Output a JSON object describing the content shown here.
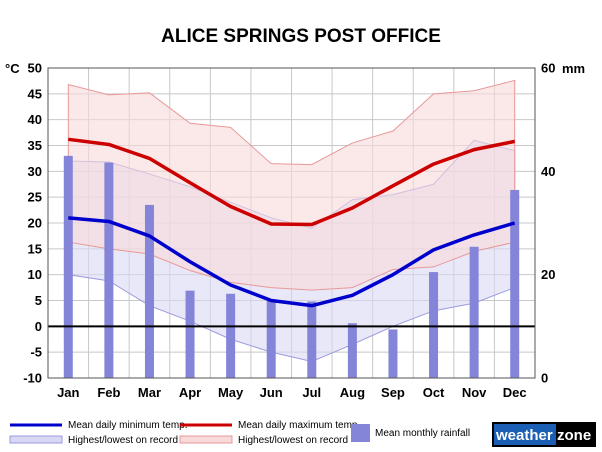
{
  "chart_data": {
    "type": "line",
    "title": "ALICE SPRINGS POST OFFICE",
    "left_axis_unit": "°C",
    "right_axis_unit": "mm",
    "categories": [
      "Jan",
      "Feb",
      "Mar",
      "Apr",
      "May",
      "Jun",
      "Jul",
      "Aug",
      "Sep",
      "Oct",
      "Nov",
      "Dec"
    ],
    "y_left": {
      "min": -10,
      "max": 50,
      "ticks": [
        50,
        45,
        40,
        35,
        30,
        25,
        20,
        15,
        10,
        5,
        0,
        -5,
        -10
      ]
    },
    "y_right": {
      "min": 0,
      "max": 60,
      "ticks": [
        60,
        40,
        20,
        0
      ]
    },
    "grid": true,
    "series": [
      {
        "name": "Mean daily minimum temp.",
        "color": "#0000cc",
        "axis": "left",
        "values": [
          21.0,
          20.3,
          17.5,
          12.5,
          8.0,
          5.0,
          4.0,
          6.0,
          10.0,
          14.8,
          17.7,
          20.0
        ]
      },
      {
        "name": "Mean daily maximum temp.",
        "color": "#cc0000",
        "axis": "left",
        "values": [
          36.2,
          35.2,
          32.5,
          27.8,
          23.2,
          19.8,
          19.7,
          22.9,
          27.2,
          31.4,
          34.2,
          35.8
        ]
      }
    ],
    "bands": [
      {
        "name": "Highest/lowest on record",
        "fill": "#d8d8f4",
        "stroke": "#9a9ae0",
        "axis": "left",
        "upper": [
          32.0,
          31.8,
          29.5,
          27.0,
          24.0,
          21.0,
          19.0,
          24.5,
          25.5,
          27.5,
          36.0,
          34.0
        ],
        "lower": [
          10.0,
          8.8,
          4.0,
          1.0,
          -2.5,
          -5.0,
          -6.8,
          -3.5,
          0.0,
          3.0,
          4.5,
          7.5
        ]
      },
      {
        "name": "Highest/lowest on record",
        "fill": "#f8dada",
        "stroke": "#e89898",
        "axis": "left",
        "upper": [
          46.8,
          44.8,
          45.2,
          39.3,
          38.5,
          31.5,
          31.3,
          35.5,
          37.8,
          45.0,
          45.6,
          47.6
        ],
        "lower": [
          16.3,
          15.0,
          14.0,
          10.8,
          8.5,
          7.5,
          7.0,
          7.5,
          11.0,
          11.5,
          14.5,
          16.3
        ]
      }
    ],
    "bars": {
      "name": "Mean monthly rainfall",
      "color": "#8484d8",
      "axis": "right",
      "values": [
        43.0,
        41.7,
        33.5,
        16.9,
        16.3,
        14.9,
        14.8,
        10.6,
        9.4,
        20.5,
        25.4,
        36.4
      ]
    }
  },
  "legend": {
    "min_label": "Mean daily minimum temp.",
    "max_label": "Mean daily maximum temp.",
    "record_low_label": "Highest/lowest on record",
    "record_high_label": "Highest/lowest on record",
    "rain_label": "Mean monthly rainfall"
  },
  "logo": {
    "part1": "weather",
    "part2": "zone"
  }
}
